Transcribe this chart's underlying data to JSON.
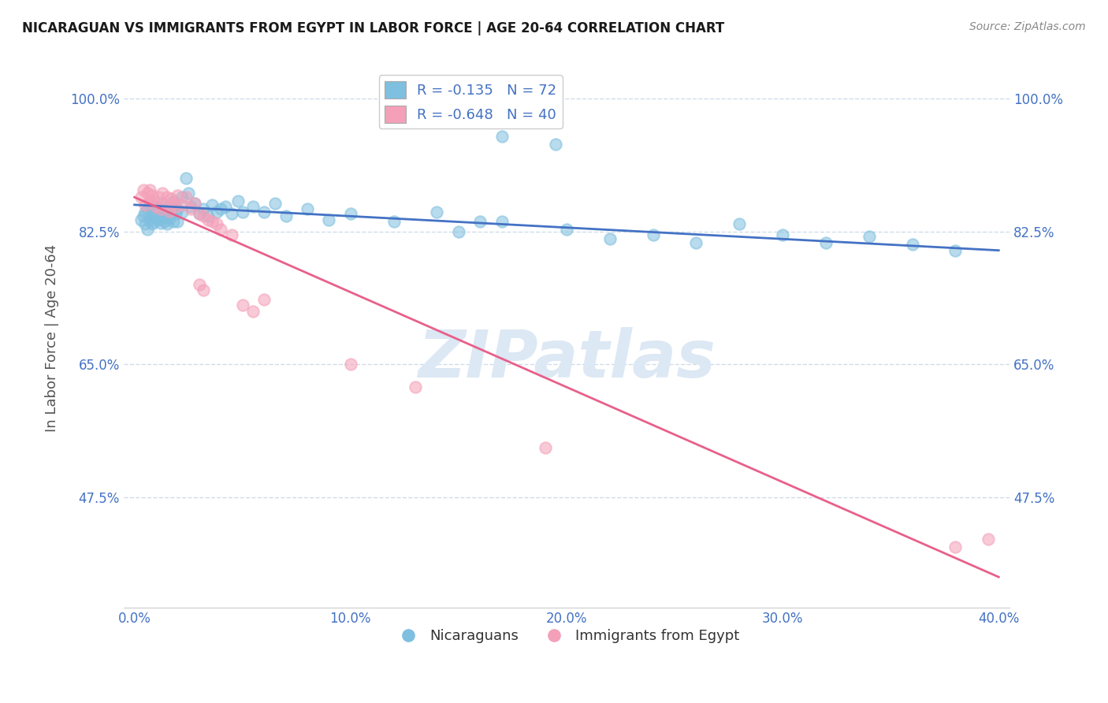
{
  "title": "NICARAGUAN VS IMMIGRANTS FROM EGYPT IN LABOR FORCE | AGE 20-64 CORRELATION CHART",
  "source_text": "Source: ZipAtlas.com",
  "ylabel": "In Labor Force | Age 20-64",
  "xlabel": "",
  "blue_label": "Nicaraguans",
  "pink_label": "Immigrants from Egypt",
  "blue_R": -0.135,
  "blue_N": 72,
  "pink_R": -0.648,
  "pink_N": 40,
  "xlim": [
    -0.005,
    0.405
  ],
  "ylim": [
    0.33,
    1.04
  ],
  "yticks": [
    0.475,
    0.65,
    0.825,
    1.0
  ],
  "ytick_labels": [
    "47.5%",
    "65.0%",
    "82.5%",
    "100.0%"
  ],
  "xticks": [
    0.0,
    0.1,
    0.2,
    0.3,
    0.4
  ],
  "xtick_labels": [
    "0.0%",
    "10.0%",
    "20.0%",
    "30.0%",
    "40.0%"
  ],
  "blue_scatter": [
    [
      0.003,
      0.84
    ],
    [
      0.004,
      0.845
    ],
    [
      0.005,
      0.835
    ],
    [
      0.005,
      0.85
    ],
    [
      0.006,
      0.828
    ],
    [
      0.006,
      0.855
    ],
    [
      0.007,
      0.84
    ],
    [
      0.007,
      0.86
    ],
    [
      0.008,
      0.845
    ],
    [
      0.008,
      0.835
    ],
    [
      0.009,
      0.852
    ],
    [
      0.009,
      0.838
    ],
    [
      0.01,
      0.844
    ],
    [
      0.01,
      0.858
    ],
    [
      0.011,
      0.84
    ],
    [
      0.011,
      0.855
    ],
    [
      0.012,
      0.842
    ],
    [
      0.012,
      0.836
    ],
    [
      0.013,
      0.848
    ],
    [
      0.013,
      0.862
    ],
    [
      0.014,
      0.838
    ],
    [
      0.014,
      0.852
    ],
    [
      0.015,
      0.845
    ],
    [
      0.015,
      0.835
    ],
    [
      0.016,
      0.858
    ],
    [
      0.016,
      0.842
    ],
    [
      0.017,
      0.85
    ],
    [
      0.018,
      0.838
    ],
    [
      0.018,
      0.865
    ],
    [
      0.019,
      0.848
    ],
    [
      0.02,
      0.855
    ],
    [
      0.02,
      0.838
    ],
    [
      0.022,
      0.87
    ],
    [
      0.022,
      0.85
    ],
    [
      0.024,
      0.895
    ],
    [
      0.025,
      0.875
    ],
    [
      0.026,
      0.858
    ],
    [
      0.028,
      0.862
    ],
    [
      0.03,
      0.848
    ],
    [
      0.032,
      0.855
    ],
    [
      0.034,
      0.845
    ],
    [
      0.036,
      0.86
    ],
    [
      0.038,
      0.85
    ],
    [
      0.04,
      0.855
    ],
    [
      0.042,
      0.858
    ],
    [
      0.045,
      0.848
    ],
    [
      0.048,
      0.865
    ],
    [
      0.05,
      0.85
    ],
    [
      0.055,
      0.858
    ],
    [
      0.06,
      0.85
    ],
    [
      0.065,
      0.862
    ],
    [
      0.07,
      0.845
    ],
    [
      0.08,
      0.855
    ],
    [
      0.09,
      0.84
    ],
    [
      0.1,
      0.848
    ],
    [
      0.12,
      0.838
    ],
    [
      0.14,
      0.85
    ],
    [
      0.16,
      0.838
    ],
    [
      0.15,
      0.825
    ],
    [
      0.17,
      0.838
    ],
    [
      0.2,
      0.828
    ],
    [
      0.22,
      0.815
    ],
    [
      0.24,
      0.82
    ],
    [
      0.26,
      0.81
    ],
    [
      0.28,
      0.835
    ],
    [
      0.3,
      0.82
    ],
    [
      0.32,
      0.81
    ],
    [
      0.34,
      0.818
    ],
    [
      0.36,
      0.808
    ],
    [
      0.38,
      0.8
    ],
    [
      0.17,
      0.95
    ],
    [
      0.195,
      0.94
    ]
  ],
  "pink_scatter": [
    [
      0.003,
      0.87
    ],
    [
      0.004,
      0.88
    ],
    [
      0.005,
      0.86
    ],
    [
      0.006,
      0.875
    ],
    [
      0.007,
      0.88
    ],
    [
      0.007,
      0.865
    ],
    [
      0.008,
      0.872
    ],
    [
      0.009,
      0.865
    ],
    [
      0.01,
      0.858
    ],
    [
      0.011,
      0.87
    ],
    [
      0.012,
      0.855
    ],
    [
      0.013,
      0.875
    ],
    [
      0.014,
      0.86
    ],
    [
      0.015,
      0.87
    ],
    [
      0.016,
      0.852
    ],
    [
      0.017,
      0.868
    ],
    [
      0.018,
      0.862
    ],
    [
      0.019,
      0.858
    ],
    [
      0.02,
      0.872
    ],
    [
      0.022,
      0.86
    ],
    [
      0.024,
      0.87
    ],
    [
      0.026,
      0.855
    ],
    [
      0.028,
      0.862
    ],
    [
      0.03,
      0.848
    ],
    [
      0.032,
      0.845
    ],
    [
      0.034,
      0.84
    ],
    [
      0.036,
      0.838
    ],
    [
      0.038,
      0.835
    ],
    [
      0.04,
      0.828
    ],
    [
      0.045,
      0.82
    ],
    [
      0.03,
      0.755
    ],
    [
      0.032,
      0.748
    ],
    [
      0.05,
      0.728
    ],
    [
      0.055,
      0.72
    ],
    [
      0.06,
      0.735
    ],
    [
      0.1,
      0.65
    ],
    [
      0.13,
      0.62
    ],
    [
      0.19,
      0.54
    ],
    [
      0.38,
      0.41
    ],
    [
      0.395,
      0.42
    ]
  ],
  "blue_line_x": [
    0.0,
    0.4
  ],
  "blue_line_y": [
    0.86,
    0.8
  ],
  "pink_line_x": [
    0.0,
    0.4
  ],
  "pink_line_y": [
    0.87,
    0.37
  ],
  "blue_color": "#7fbfdf",
  "pink_color": "#f4a0b8",
  "blue_line_color": "#4472c4",
  "pink_line_color": "#e8608a",
  "grid_color": "#d0dce8",
  "title_color": "#1a1a1a",
  "axis_label_color": "#555555",
  "tick_color": "#4472c4",
  "watermark_color": "#dce8f4",
  "legend_R_color": "#4472c4"
}
